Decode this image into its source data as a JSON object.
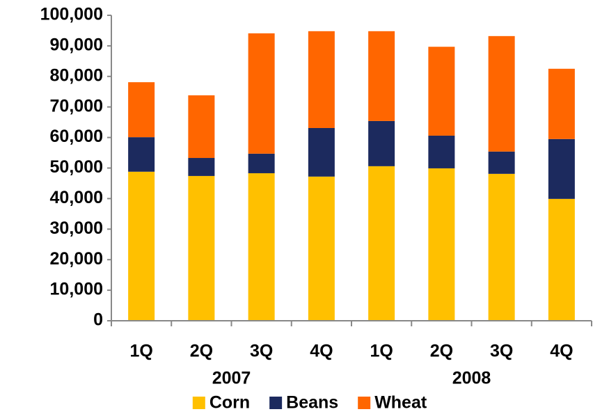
{
  "chart_data": {
    "type": "stacked_bar",
    "categories": [
      "1Q",
      "2Q",
      "3Q",
      "4Q",
      "1Q",
      "2Q",
      "3Q",
      "4Q"
    ],
    "groups": [
      "2007",
      "2008"
    ],
    "series": [
      {
        "name": "Corn",
        "color": "#FFC000",
        "values": [
          48800,
          47400,
          48300,
          47200,
          50600,
          49900,
          48100,
          39900
        ]
      },
      {
        "name": "Beans",
        "color": "#1C2A5E",
        "values": [
          11300,
          5900,
          6400,
          15900,
          14800,
          10700,
          7300,
          19600
        ]
      },
      {
        "name": "Wheat",
        "color": "#FF6600",
        "values": [
          18000,
          20500,
          39400,
          31700,
          29400,
          29100,
          37800,
          23000
        ]
      }
    ],
    "ylim": [
      0,
      100000
    ],
    "yticks": [
      0,
      {
        "value": 10000,
        "label": "10,000"
      },
      {
        "value": 20000,
        "label": "20,000"
      },
      {
        "value": 30000,
        "label": "30,000"
      },
      {
        "value": 40000,
        "label": "40,000"
      },
      {
        "value": 50000,
        "label": "50,000"
      },
      {
        "value": 60000,
        "label": "60,000"
      },
      {
        "value": 70000,
        "label": "70,000"
      },
      {
        "value": 80000,
        "label": "80,000"
      },
      {
        "value": 90000,
        "label": "90,000"
      },
      {
        "value": 100000,
        "label": "100,000"
      }
    ],
    "legend": "bottom"
  }
}
